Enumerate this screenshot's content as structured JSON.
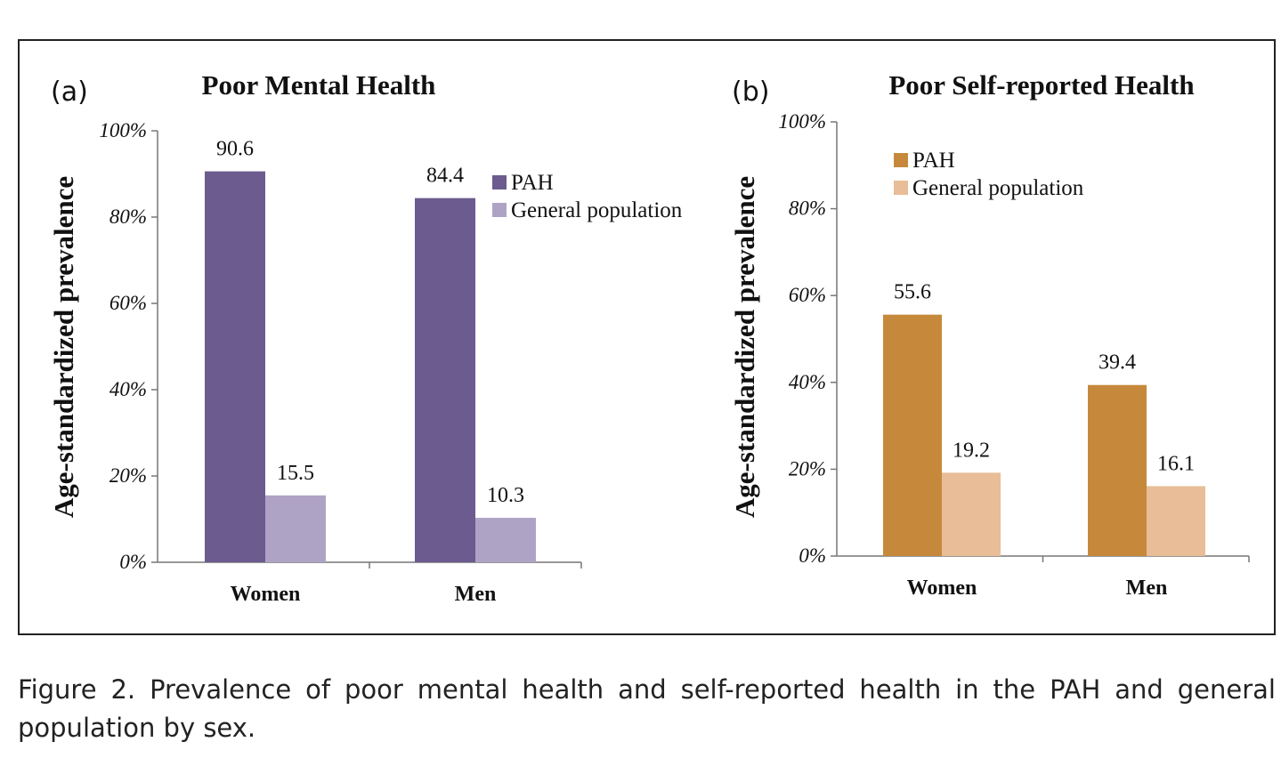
{
  "caption": "Figure 2. Prevalence of poor mental health and self-reported health in the PAH and general population by sex.",
  "chart_data": [
    {
      "type": "bar",
      "panel_label": "(a)",
      "title": "Poor Mental Health",
      "ylabel": "Age-standardized prevalence",
      "xlabel": "",
      "categories": [
        "Women",
        "Men"
      ],
      "series": [
        {
          "name": "PAH",
          "values": [
            90.6,
            84.4
          ],
          "color": "#6c5b8e"
        },
        {
          "name": "General population",
          "values": [
            15.5,
            10.3
          ],
          "color": "#afa3c5"
        }
      ],
      "ylim": [
        0,
        100
      ],
      "yticks": [
        "0%",
        "20%",
        "40%",
        "60%",
        "80%",
        "100%"
      ],
      "data_labels": true,
      "grid": false,
      "legend_position": "right"
    },
    {
      "type": "bar",
      "panel_label": "(b)",
      "title": "Poor Self-reported Health",
      "ylabel": "Age-standardized prevalence",
      "xlabel": "",
      "categories": [
        "Women",
        "Men"
      ],
      "series": [
        {
          "name": "PAH",
          "values": [
            55.6,
            39.4
          ],
          "color": "#c6893c"
        },
        {
          "name": "General population",
          "values": [
            19.2,
            16.1
          ],
          "color": "#e8bd97"
        }
      ],
      "ylim": [
        0,
        100
      ],
      "yticks": [
        "0%",
        "20%",
        "40%",
        "60%",
        "80%",
        "100%"
      ],
      "data_labels": true,
      "grid": false,
      "legend_position": "top-left"
    }
  ]
}
